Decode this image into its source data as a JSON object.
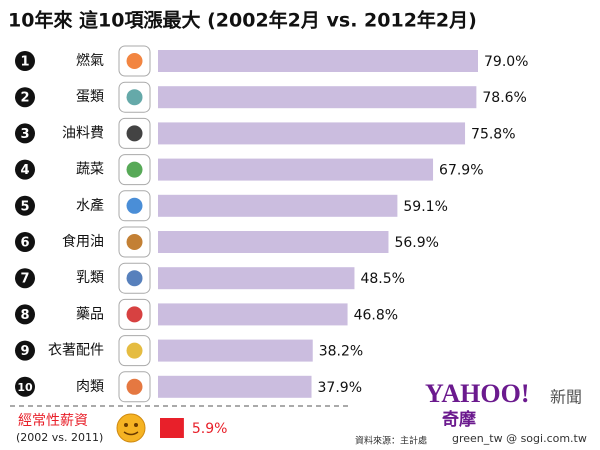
{
  "chart_data": {
    "type": "bar",
    "title": "10年來 這10項漲最大 (2002年2月 vs. 2012年2月)",
    "ranks": [
      1,
      2,
      3,
      4,
      5,
      6,
      7,
      8,
      9,
      10
    ],
    "categories": [
      "燃氣",
      "蛋類",
      "油料費",
      "蔬菜",
      "水產",
      "食用油",
      "乳類",
      "藥品",
      "衣著配件",
      "肉類"
    ],
    "values": [
      79.0,
      78.6,
      75.8,
      67.9,
      59.1,
      56.9,
      48.5,
      46.8,
      38.2,
      37.9
    ],
    "value_labels": [
      "79.0%",
      "78.6%",
      "75.8%",
      "67.9%",
      "59.1%",
      "56.9%",
      "48.5%",
      "46.8%",
      "38.2%",
      "37.9%"
    ],
    "color": "#cbbddf",
    "comparison": {
      "label": "經常性薪資",
      "sublabel": "(2002 vs. 2011)",
      "value": 5.9,
      "value_label": "5.9%",
      "color": "#e8202a"
    },
    "source": "資料來源：主計處"
  },
  "branding": {
    "logo": "YAHOO!",
    "logo_sub": "奇摩",
    "section": "新聞",
    "watermark": "green_tw @ sogi.com.tw"
  }
}
